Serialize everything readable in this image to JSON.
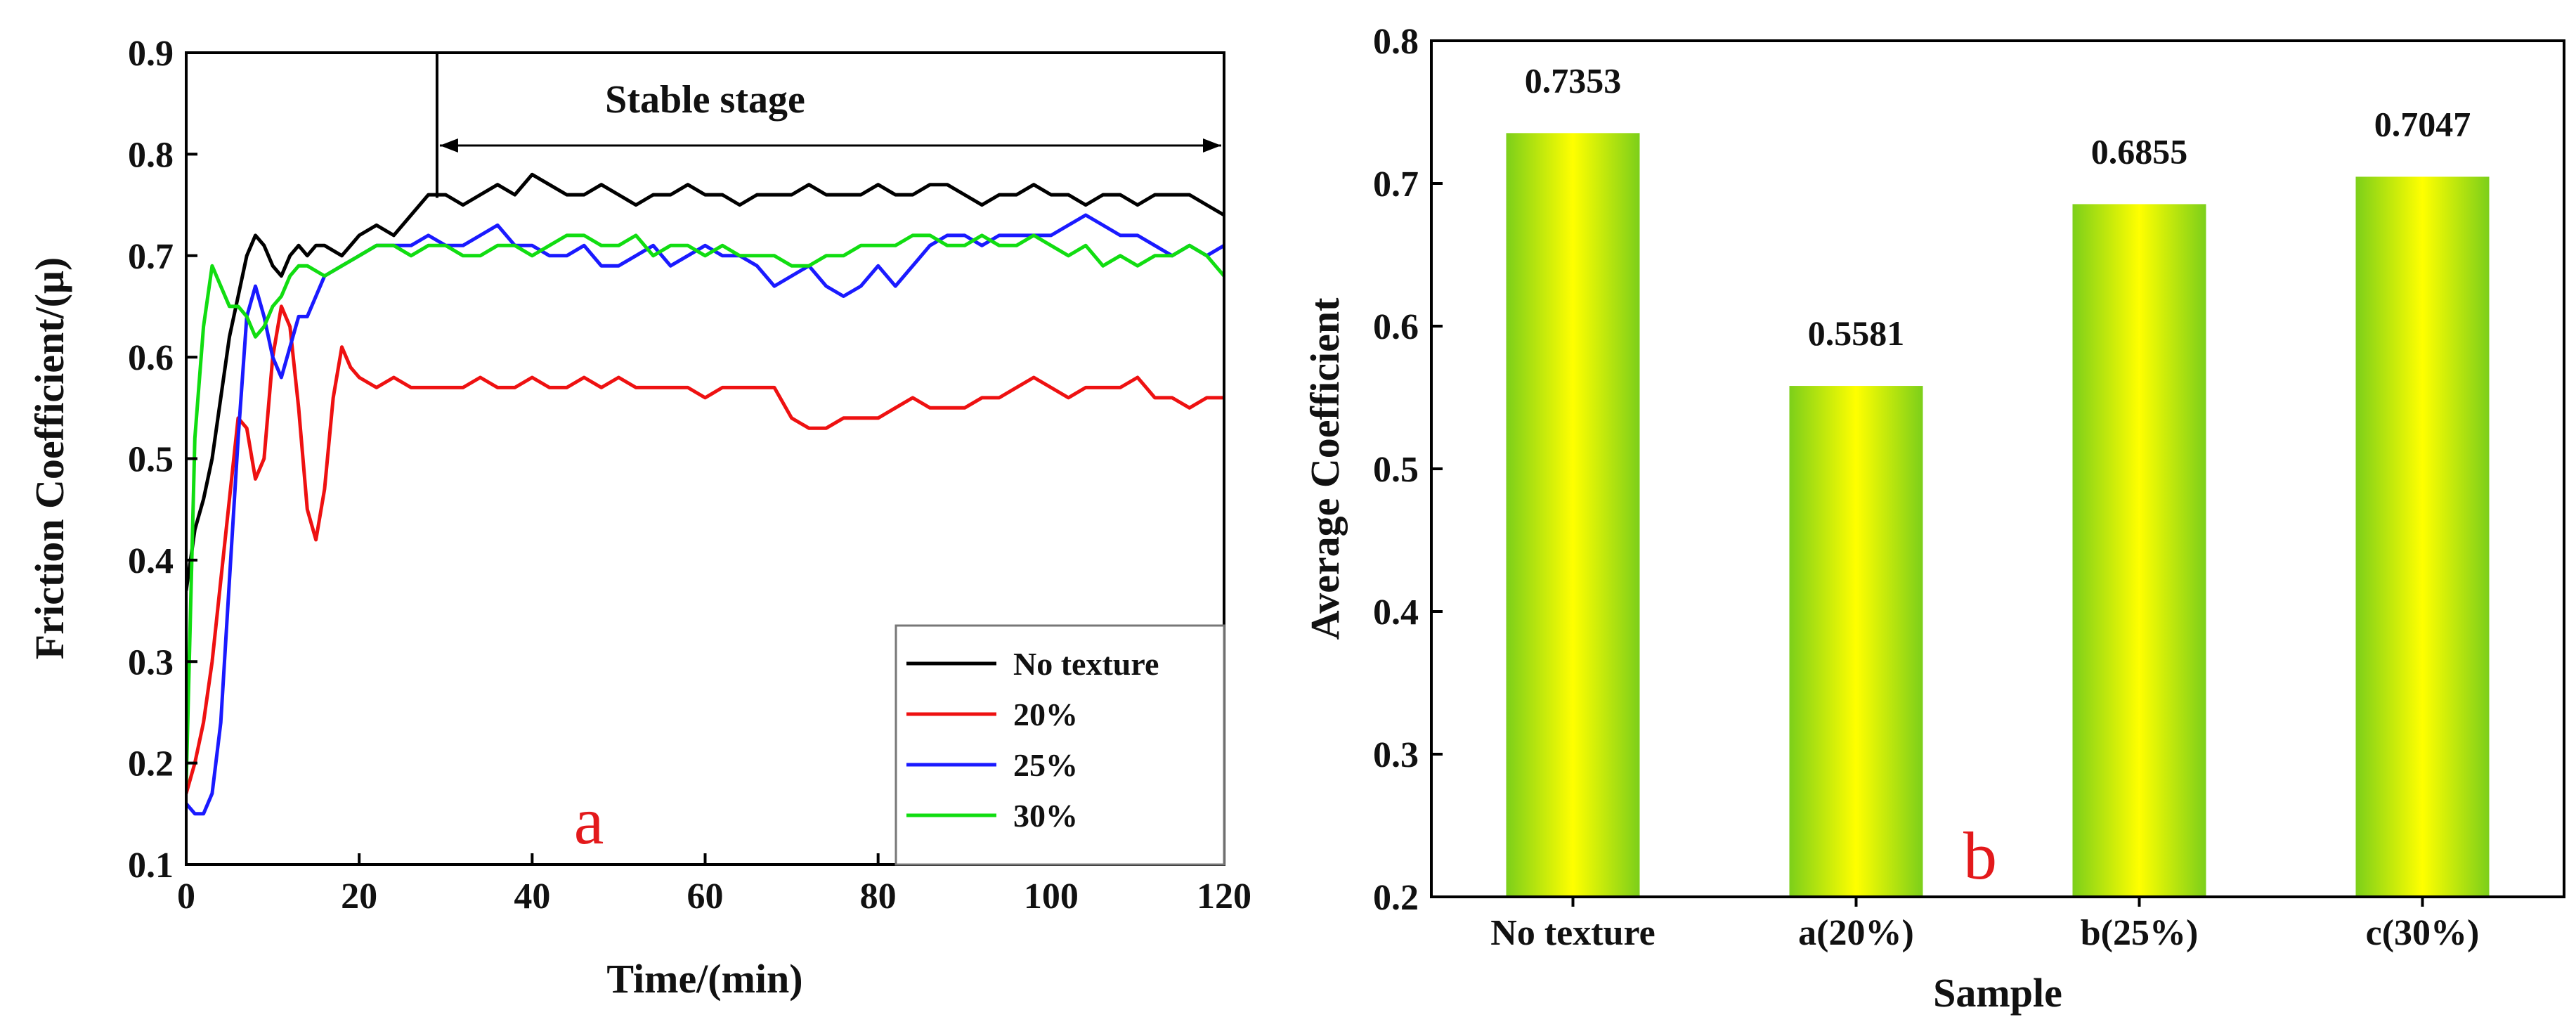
{
  "chart_data": [
    {
      "type": "line",
      "panel_label": "a",
      "xlabel": "Time/(min)",
      "ylabel": "Friction Coefficient/(μ)",
      "xlim": [
        0,
        120
      ],
      "ylim": [
        0.1,
        0.9
      ],
      "x_ticks": [
        0,
        20,
        40,
        60,
        80,
        100,
        120
      ],
      "y_ticks": [
        0.1,
        0.2,
        0.3,
        0.4,
        0.5,
        0.6,
        0.7,
        0.8,
        0.9
      ],
      "annotation": {
        "text": "Stable stage",
        "x_start": 29,
        "x_end": 120
      },
      "legend_position": "bottom-right",
      "series": [
        {
          "name": "No texture",
          "color": "#000000",
          "x": [
            0,
            1,
            2,
            3,
            4,
            5,
            6,
            7,
            8,
            9,
            10,
            11,
            12,
            13,
            14,
            15,
            16,
            18,
            20,
            22,
            24,
            26,
            28,
            30,
            32,
            34,
            36,
            38,
            40,
            42,
            44,
            46,
            48,
            50,
            52,
            54,
            56,
            58,
            60,
            62,
            64,
            66,
            68,
            70,
            72,
            74,
            76,
            78,
            80,
            82,
            84,
            86,
            88,
            90,
            92,
            94,
            96,
            98,
            100,
            102,
            104,
            106,
            108,
            110,
            112,
            114,
            116,
            118,
            120
          ],
          "y": [
            0.37,
            0.43,
            0.46,
            0.5,
            0.56,
            0.62,
            0.66,
            0.7,
            0.72,
            0.71,
            0.69,
            0.68,
            0.7,
            0.71,
            0.7,
            0.71,
            0.71,
            0.7,
            0.72,
            0.73,
            0.72,
            0.74,
            0.76,
            0.76,
            0.75,
            0.76,
            0.77,
            0.76,
            0.78,
            0.77,
            0.76,
            0.76,
            0.77,
            0.76,
            0.75,
            0.76,
            0.76,
            0.77,
            0.76,
            0.76,
            0.75,
            0.76,
            0.76,
            0.76,
            0.77,
            0.76,
            0.76,
            0.76,
            0.77,
            0.76,
            0.76,
            0.77,
            0.77,
            0.76,
            0.75,
            0.76,
            0.76,
            0.77,
            0.76,
            0.76,
            0.75,
            0.76,
            0.76,
            0.75,
            0.76,
            0.76,
            0.76,
            0.75,
            0.74
          ]
        },
        {
          "name": "20%",
          "color": "#ee1111",
          "x": [
            0,
            1,
            2,
            3,
            4,
            5,
            6,
            7,
            8,
            9,
            10,
            11,
            12,
            13,
            14,
            15,
            16,
            17,
            18,
            19,
            20,
            22,
            24,
            26,
            28,
            30,
            32,
            34,
            36,
            38,
            40,
            42,
            44,
            46,
            48,
            50,
            52,
            54,
            56,
            58,
            60,
            62,
            64,
            66,
            68,
            70,
            72,
            74,
            76,
            78,
            80,
            82,
            84,
            86,
            88,
            90,
            92,
            94,
            96,
            98,
            100,
            102,
            104,
            106,
            108,
            110,
            112,
            114,
            116,
            118,
            120
          ],
          "y": [
            0.17,
            0.2,
            0.24,
            0.3,
            0.38,
            0.46,
            0.54,
            0.53,
            0.48,
            0.5,
            0.6,
            0.65,
            0.63,
            0.55,
            0.45,
            0.42,
            0.47,
            0.56,
            0.61,
            0.59,
            0.58,
            0.57,
            0.58,
            0.57,
            0.57,
            0.57,
            0.57,
            0.58,
            0.57,
            0.57,
            0.58,
            0.57,
            0.57,
            0.58,
            0.57,
            0.58,
            0.57,
            0.57,
            0.57,
            0.57,
            0.56,
            0.57,
            0.57,
            0.57,
            0.57,
            0.54,
            0.53,
            0.53,
            0.54,
            0.54,
            0.54,
            0.55,
            0.56,
            0.55,
            0.55,
            0.55,
            0.56,
            0.56,
            0.57,
            0.58,
            0.57,
            0.56,
            0.57,
            0.57,
            0.57,
            0.58,
            0.56,
            0.56,
            0.55,
            0.56,
            0.56
          ]
        },
        {
          "name": "25%",
          "color": "#1a1aff",
          "x": [
            0,
            1,
            2,
            3,
            4,
            5,
            6,
            7,
            8,
            9,
            10,
            11,
            12,
            13,
            14,
            15,
            16,
            18,
            20,
            22,
            24,
            26,
            28,
            30,
            32,
            34,
            36,
            38,
            40,
            42,
            44,
            46,
            48,
            50,
            52,
            54,
            56,
            58,
            60,
            62,
            64,
            66,
            68,
            70,
            72,
            74,
            76,
            78,
            80,
            82,
            84,
            86,
            88,
            90,
            92,
            94,
            96,
            98,
            100,
            102,
            104,
            106,
            108,
            110,
            112,
            114,
            116,
            118,
            120
          ],
          "y": [
            0.16,
            0.15,
            0.15,
            0.17,
            0.24,
            0.38,
            0.52,
            0.64,
            0.67,
            0.64,
            0.6,
            0.58,
            0.61,
            0.64,
            0.64,
            0.66,
            0.68,
            0.69,
            0.7,
            0.71,
            0.71,
            0.71,
            0.72,
            0.71,
            0.71,
            0.72,
            0.73,
            0.71,
            0.71,
            0.7,
            0.7,
            0.71,
            0.69,
            0.69,
            0.7,
            0.71,
            0.69,
            0.7,
            0.71,
            0.7,
            0.7,
            0.69,
            0.67,
            0.68,
            0.69,
            0.67,
            0.66,
            0.67,
            0.69,
            0.67,
            0.69,
            0.71,
            0.72,
            0.72,
            0.71,
            0.72,
            0.72,
            0.72,
            0.72,
            0.73,
            0.74,
            0.73,
            0.72,
            0.72,
            0.71,
            0.7,
            0.71,
            0.7,
            0.71
          ]
        },
        {
          "name": "30%",
          "color": "#11dd11",
          "x": [
            0,
            1,
            2,
            3,
            4,
            5,
            6,
            7,
            8,
            9,
            10,
            11,
            12,
            13,
            14,
            16,
            18,
            20,
            22,
            24,
            26,
            28,
            30,
            32,
            34,
            36,
            38,
            40,
            42,
            44,
            46,
            48,
            50,
            52,
            54,
            56,
            58,
            60,
            62,
            64,
            66,
            68,
            70,
            72,
            74,
            76,
            78,
            80,
            82,
            84,
            86,
            88,
            90,
            92,
            94,
            96,
            98,
            100,
            102,
            104,
            106,
            108,
            110,
            112,
            114,
            116,
            118,
            120
          ],
          "y": [
            0.18,
            0.52,
            0.63,
            0.69,
            0.67,
            0.65,
            0.65,
            0.64,
            0.62,
            0.63,
            0.65,
            0.66,
            0.68,
            0.69,
            0.69,
            0.68,
            0.69,
            0.7,
            0.71,
            0.71,
            0.7,
            0.71,
            0.71,
            0.7,
            0.7,
            0.71,
            0.71,
            0.7,
            0.71,
            0.72,
            0.72,
            0.71,
            0.71,
            0.72,
            0.7,
            0.71,
            0.71,
            0.7,
            0.71,
            0.7,
            0.7,
            0.7,
            0.69,
            0.69,
            0.7,
            0.7,
            0.71,
            0.71,
            0.71,
            0.72,
            0.72,
            0.71,
            0.71,
            0.72,
            0.71,
            0.71,
            0.72,
            0.71,
            0.7,
            0.71,
            0.69,
            0.7,
            0.69,
            0.7,
            0.7,
            0.71,
            0.7,
            0.68
          ]
        }
      ]
    },
    {
      "type": "bar",
      "panel_label": "b",
      "xlabel": "Sample",
      "ylabel": "Average Coefficient",
      "ylim": [
        0.2,
        0.8
      ],
      "y_ticks": [
        0.2,
        0.3,
        0.4,
        0.5,
        0.6,
        0.7,
        0.8
      ],
      "categories": [
        "No texture",
        "a(20%)",
        "b(25%)",
        "c(30%)"
      ],
      "values": [
        0.7353,
        0.5581,
        0.6855,
        0.7047
      ],
      "value_labels": [
        "0.7353",
        "0.5581",
        "0.6855",
        "0.7047"
      ],
      "bar_gradient": {
        "edge": "#7ccf1a",
        "center": "#ffff00"
      }
    }
  ]
}
